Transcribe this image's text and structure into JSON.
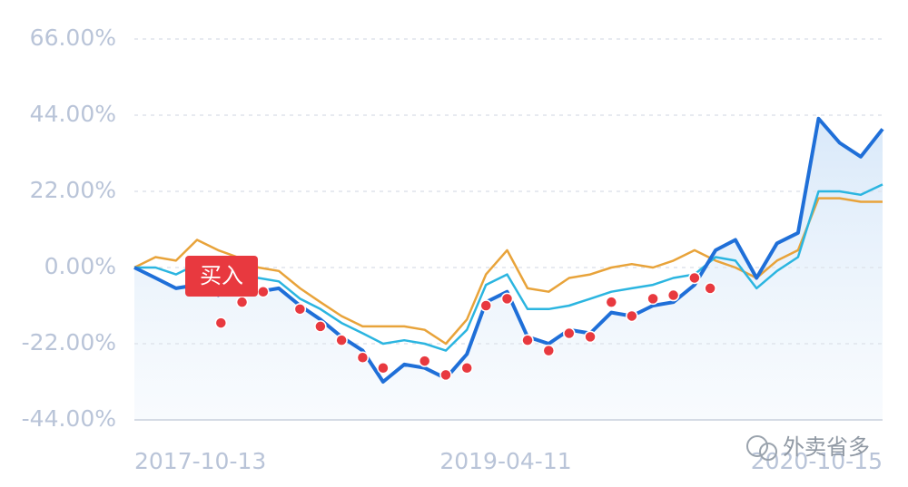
{
  "chart_data": {
    "type": "line",
    "x": [
      "2017-10-13",
      "2017-11-13",
      "2017-12-13",
      "2018-01-13",
      "2018-02-13",
      "2018-03-13",
      "2018-04-13",
      "2018-05-13",
      "2018-06-13",
      "2018-07-13",
      "2018-08-13",
      "2018-09-13",
      "2018-10-13",
      "2018-11-13",
      "2018-12-13",
      "2019-01-13",
      "2019-02-13",
      "2019-03-13",
      "2019-04-13",
      "2019-05-13",
      "2019-06-13",
      "2019-07-13",
      "2019-08-13",
      "2019-09-13",
      "2019-10-13",
      "2019-11-13",
      "2019-12-13",
      "2020-01-13",
      "2020-02-13",
      "2020-03-13",
      "2020-04-13",
      "2020-05-13",
      "2020-06-13",
      "2020-07-13",
      "2020-08-13",
      "2020-09-13",
      "2020-10-15"
    ],
    "series": [
      {
        "color": "#e8a33a",
        "values": [
          0,
          3,
          2,
          8,
          5,
          3,
          0,
          -1,
          -6,
          -10,
          -14,
          -17,
          -17,
          -17,
          -18,
          -22,
          -15,
          -2,
          5,
          -6,
          -7,
          -3,
          -2,
          0,
          1,
          0,
          2,
          5,
          2,
          0,
          -3,
          2,
          5,
          20,
          20,
          19,
          19
        ]
      },
      {
        "color": "#2bb5e0",
        "values": [
          0,
          0,
          -2,
          1,
          -1,
          -2,
          -3,
          -4,
          -9,
          -12,
          -16,
          -19,
          -22,
          -21,
          -22,
          -24,
          -18,
          -5,
          -2,
          -12,
          -12,
          -11,
          -9,
          -7,
          -6,
          -5,
          -3,
          -2,
          3,
          2,
          -6,
          -1,
          3,
          22,
          22,
          21,
          24
        ]
      },
      {
        "color": "#1f6fd8",
        "values": [
          0,
          -3,
          -6,
          -5,
          -8,
          -5,
          -7,
          -6,
          -11,
          -15,
          -20,
          -24,
          -33,
          -28,
          -29,
          -32,
          -25,
          -10,
          -7,
          -20,
          -22,
          -18,
          -19,
          -13,
          -14,
          -11,
          -10,
          -5,
          5,
          8,
          -3,
          7,
          10,
          43,
          36,
          32,
          40
        ],
        "fill": true
      }
    ],
    "markers": {
      "name": "买入",
      "color": "#e8393f",
      "x": [
        "2018-02-17",
        "2018-03-20",
        "2018-04-20",
        "2018-06-13",
        "2018-07-13",
        "2018-08-13",
        "2018-09-13",
        "2018-10-13",
        "2018-12-13",
        "2019-01-13",
        "2019-02-13",
        "2019-03-13",
        "2019-04-13",
        "2019-05-13",
        "2019-06-13",
        "2019-07-13",
        "2019-08-13",
        "2019-09-13",
        "2019-10-13",
        "2019-11-13",
        "2019-12-13",
        "2020-01-13",
        "2020-02-05"
      ],
      "values": [
        -16,
        -10,
        -7,
        -12,
        -17,
        -21,
        -26,
        -29,
        -27,
        -31,
        -29,
        -11,
        -9,
        -21,
        -24,
        -19,
        -20,
        -10,
        -14,
        -9,
        -8,
        -3,
        -6
      ]
    },
    "xlim": [
      "2017-10-13",
      "2020-10-15"
    ],
    "xticks": [
      "2017-10-13",
      "2019-04-11",
      "2020-10-15"
    ],
    "ylim": [
      -44,
      66
    ],
    "yticks": [
      {
        "value": 66,
        "label": "66.00%"
      },
      {
        "value": 44,
        "label": "44.00%"
      },
      {
        "value": 22,
        "label": "22.00%"
      },
      {
        "value": 0,
        "label": "0.00%"
      },
      {
        "value": -22,
        "label": "-22.00%"
      },
      {
        "value": -44,
        "label": "-44.00%"
      }
    ],
    "grid": true
  },
  "watermark": "外卖省多"
}
